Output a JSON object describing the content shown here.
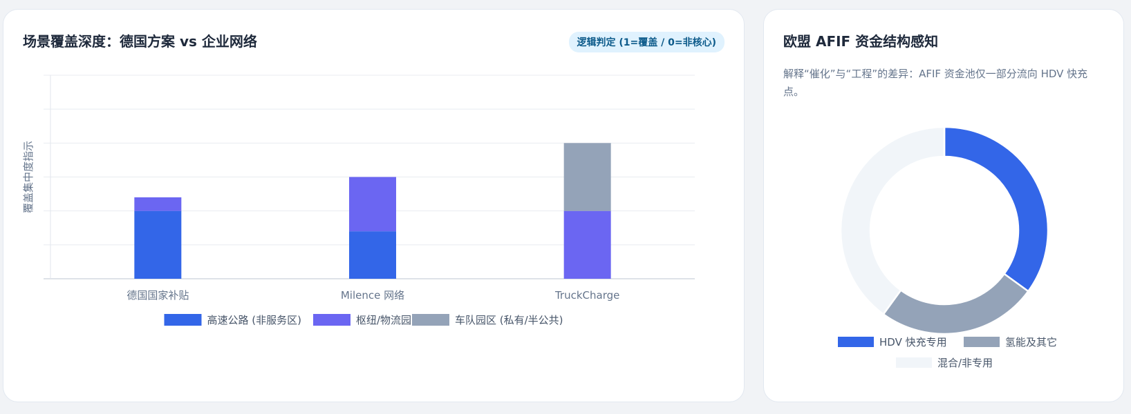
{
  "left_card": {
    "title": "场景覆盖深度：德国方案 vs 企业网络",
    "badge": "逻辑判定 (1=覆盖 / 0=非核心)"
  },
  "right_card": {
    "title": "欧盟 AFIF 资金结构感知",
    "description": "解释“催化”与“工程”的差异：AFIF 资金池仅一部分流向 HDV 快充点。"
  },
  "chart_data": [
    {
      "type": "bar",
      "stacked": true,
      "title": "场景覆盖深度：德国方案 vs 企业网络",
      "ylabel": "覆盖集中度指示",
      "categories": [
        "德国国家补贴",
        "Milence 网络",
        "TruckCharge"
      ],
      "series": [
        {
          "name": "高速公路 (非服务区)",
          "color": "#3366e8",
          "values": [
            1.0,
            0.7,
            0
          ]
        },
        {
          "name": "枢纽/物流园",
          "color": "#6b66f2",
          "values": [
            0.2,
            0.8,
            1.0
          ]
        },
        {
          "name": "车队园区 (私有/半公共)",
          "color": "#94a3b8",
          "values": [
            0,
            0,
            1.0
          ]
        }
      ],
      "ylim": [
        0,
        3
      ],
      "grid": true,
      "legend": "bottom"
    },
    {
      "type": "pie",
      "donut": true,
      "title": "欧盟 AFIF 资金结构感知",
      "labels": [
        "HDV 快充专用",
        "氢能及其它",
        "混合/非专用"
      ],
      "values": [
        35,
        25,
        40
      ],
      "colors": [
        "#3366e8",
        "#94a3b8",
        "#f1f5f9"
      ],
      "legend": "bottom"
    }
  ]
}
